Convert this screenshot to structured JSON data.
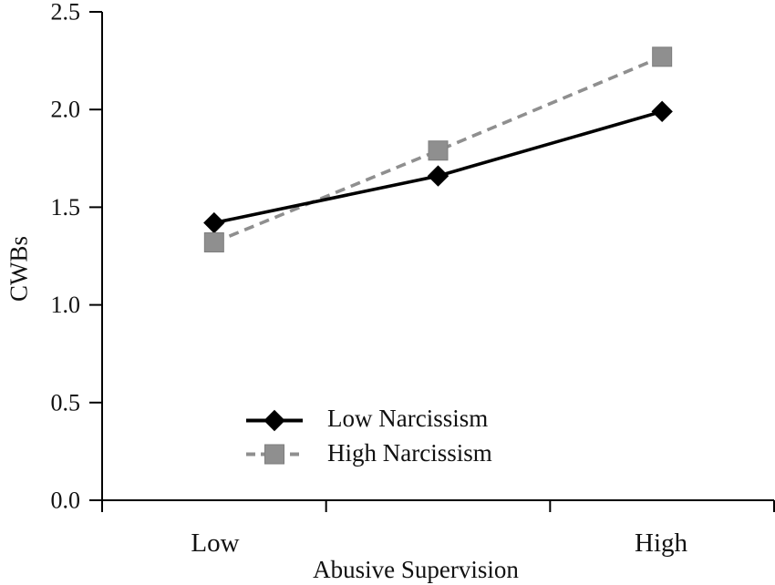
{
  "chart_data": {
    "type": "line",
    "title": "",
    "xlabel": "Abusive Supervision",
    "ylabel": "CWBs",
    "x_categories": [
      "Low",
      "",
      "High"
    ],
    "x_tick_label_low": "Low",
    "x_tick_label_high": "High",
    "y_ticks": [
      0.0,
      0.5,
      1.0,
      1.5,
      2.0,
      2.5
    ],
    "y_tick_labels": [
      "0.0",
      "0.5",
      "1.0",
      "1.5",
      "2.0",
      "2.5"
    ],
    "ylim": [
      0,
      2.5
    ],
    "grid": false,
    "legend_position": "inside-lower-center",
    "series": [
      {
        "name": "Low Narcissism",
        "values": [
          1.42,
          1.66,
          1.99
        ],
        "color": "#000000",
        "line_style": "solid",
        "marker": "diamond"
      },
      {
        "name": "High Narcissism",
        "values": [
          1.32,
          1.79,
          2.27
        ],
        "color": "#8f8f8f",
        "marker_edge": "#7d7d7d",
        "line_style": "dashed",
        "marker": "square"
      }
    ],
    "colors": {
      "axis": "#000000",
      "text": "#111111",
      "background": "#ffffff"
    }
  }
}
